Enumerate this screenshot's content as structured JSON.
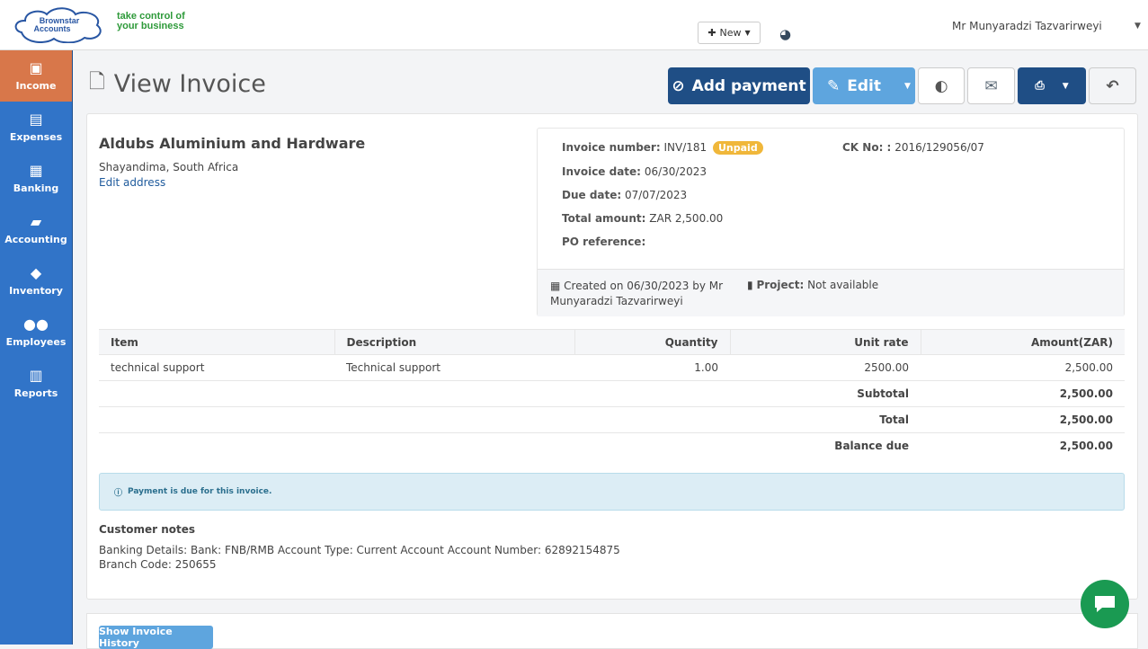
{
  "header": {
    "logo_text": "Brownstar Accounts",
    "tagline_1": "take control of",
    "tagline_2": "your business",
    "new_label": "New",
    "user": "Mr Munyaradzi Tazvarirweyi"
  },
  "sidebar": {
    "items": [
      {
        "label": "Income",
        "icon": "money-icon",
        "glyph": "💵",
        "active": true
      },
      {
        "label": "Expenses",
        "icon": "credit-card-icon",
        "glyph": "▭"
      },
      {
        "label": "Banking",
        "icon": "building-icon",
        "glyph": "▦"
      },
      {
        "label": "Accounting",
        "icon": "book-icon",
        "glyph": "📖"
      },
      {
        "label": "Inventory",
        "icon": "tags-icon",
        "glyph": "🏷"
      },
      {
        "label": "Employees",
        "icon": "users-icon",
        "glyph": "👥"
      },
      {
        "label": "Reports",
        "icon": "bar-chart-icon",
        "glyph": "📊"
      }
    ]
  },
  "page": {
    "title": "View Invoice"
  },
  "toolbar": {
    "add_payment": "Add payment",
    "edit": "Edit"
  },
  "customer": {
    "name": "Aldubs Aluminium and Hardware",
    "address": "Shayandima, South Africa",
    "edit_address": "Edit address"
  },
  "invoice": {
    "number_label": "Invoice number:",
    "number": "INV/181",
    "status": "Unpaid",
    "ck_label": "CK No: :",
    "ck": "2016/129056/07",
    "date_label": "Invoice date:",
    "date": "06/30/2023",
    "due_label": "Due date:",
    "due": "07/07/2023",
    "total_label": "Total amount:",
    "total": "ZAR 2,500.00",
    "po_label": "PO reference:",
    "created": "Created on 06/30/2023 by Mr Munyaradzi Tazvarirweyi",
    "project_label": "Project:",
    "project": "Not available"
  },
  "table": {
    "headers": [
      "Item",
      "Description",
      "Quantity",
      "Unit rate",
      "Amount(ZAR)"
    ],
    "rows": [
      [
        "technical support",
        "Technical support",
        "1.00",
        "2500.00",
        "2,500.00"
      ]
    ],
    "subtotal_label": "Subtotal",
    "subtotal": "2,500.00",
    "total_label": "Total",
    "total": "2,500.00",
    "balance_label": "Balance due",
    "balance": "2,500.00"
  },
  "alert": "Payment is due for this invoice.",
  "notes": {
    "title": "Customer notes",
    "body": "Banking Details: Bank: FNB/RMB Account Type: Current Account Account Number: 62892154875 Branch Code: 250655"
  },
  "history_button": "Show Invoice History",
  "colors": {
    "primary": "#1f4e85",
    "edit": "#5ea5de",
    "sidebar": "#3174c8",
    "active": "#d8774a",
    "badge": "#f0b73a"
  }
}
